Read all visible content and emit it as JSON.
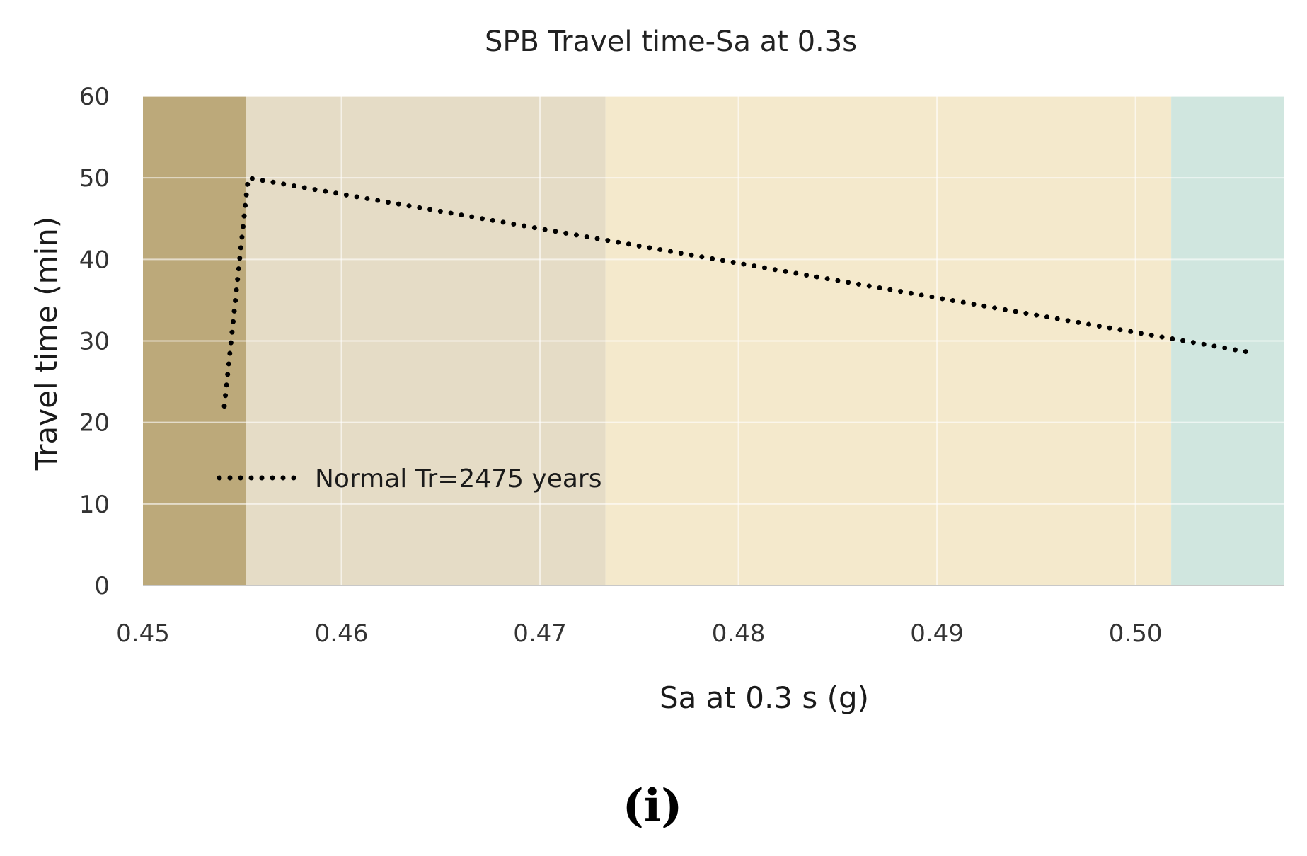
{
  "chart_data": {
    "type": "line",
    "title": "SPB Travel time-Sa at 0.3s",
    "xlabel": "Sa at 0.3 s (g)",
    "ylabel": "Travel time (min)",
    "xlim": [
      0.45,
      0.5075
    ],
    "ylim": [
      0,
      60
    ],
    "xticks": [
      "0.45",
      "0.46",
      "0.47",
      "0.48",
      "0.49",
      "0.50"
    ],
    "yticks": [
      "0",
      "10",
      "20",
      "30",
      "40",
      "50",
      "60"
    ],
    "grid": true,
    "legend_position": "lower-left",
    "series": [
      {
        "name": "Normal Tr=2475 years",
        "line_style": "dotted",
        "color": "#000000",
        "x": [
          0.4541,
          0.4553,
          0.506
        ],
        "y": [
          22,
          50,
          28.5
        ]
      }
    ],
    "background_bands": [
      {
        "x_from": 0.45,
        "x_to": 0.4552,
        "color": "#bca97a"
      },
      {
        "x_from": 0.4552,
        "x_to": 0.4733,
        "color": "#e5dcc6"
      },
      {
        "x_from": 0.4733,
        "x_to": 0.5018,
        "color": "#f4e9cc"
      },
      {
        "x_from": 0.5018,
        "x_to": 0.5075,
        "color": "#d0e6df"
      }
    ]
  },
  "panel_label": "(i)"
}
